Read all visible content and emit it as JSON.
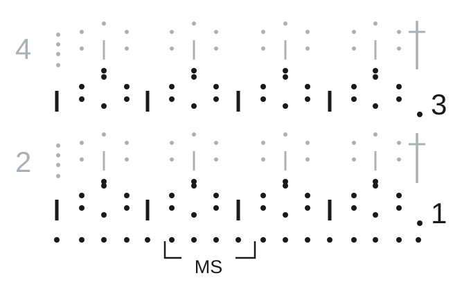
{
  "rows": [
    {
      "number": "4",
      "side": "left",
      "tone": "light"
    },
    {
      "number": "3",
      "side": "right",
      "tone": "dark"
    },
    {
      "number": "2",
      "side": "left",
      "tone": "light"
    },
    {
      "number": "1",
      "side": "right",
      "tone": "dark"
    }
  ],
  "repeat_label": "MS",
  "symbols": {
    "chain": "dot",
    "double_crochet": "vertical-bar",
    "turning_chain": "cross"
  },
  "colors": {
    "dark": "#1a1a1a",
    "light": "#aab0b6"
  }
}
